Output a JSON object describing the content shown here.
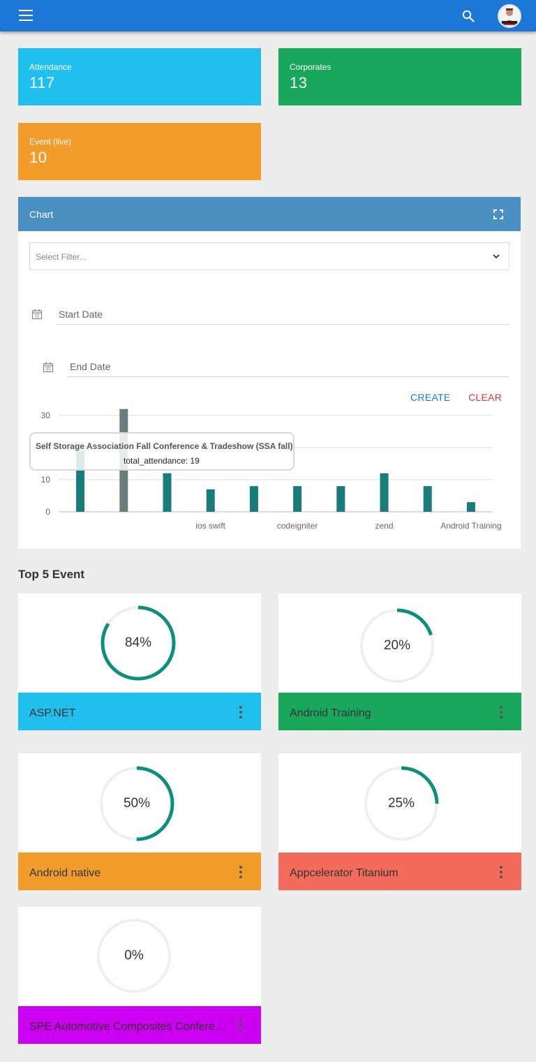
{
  "header": {
    "menu_icon": "menu-icon",
    "search_icon": "search-icon",
    "avatar_icon": "avatar"
  },
  "stats": [
    {
      "label": "Attendance",
      "value": "117",
      "color": "#20bfee"
    },
    {
      "label": "Corporates",
      "value": "13",
      "color": "#19a75b"
    },
    {
      "label": "Event (live)",
      "value": "10",
      "color": "#f29c2c"
    }
  ],
  "chart_card": {
    "title": "Chart",
    "fullscreen_icon": "fullscreen-icon",
    "filter_placeholder": "Select Filter...",
    "start_date_label": "Start Date",
    "end_date_label": "End Date",
    "create_label": "CREATE",
    "clear_label": "CLEAR",
    "colors": {
      "header": "#4a90c2",
      "create": "#1d77d6",
      "clear": "#e53935",
      "bar": "#1a7b7b"
    }
  },
  "chart_data": {
    "type": "bar",
    "y_ticks": [
      "0",
      "10",
      "20",
      "30"
    ],
    "ylim": [
      0,
      32
    ],
    "grid": true,
    "values": [
      19,
      32,
      12,
      7,
      8,
      8,
      8,
      12,
      8,
      3
    ],
    "x_tick_labels": [
      "",
      "",
      "",
      "ios swift",
      "",
      "codeigniter",
      "",
      "zend",
      "",
      "Android Training"
    ],
    "tooltip": {
      "title": "Self Storage Association Fall Conference & Tradeshow (SSA fall)",
      "text": "total_attendance: 19"
    }
  },
  "top_events": {
    "title": "Top 5 Event",
    "items": [
      {
        "name": "ASP.NET",
        "percent": 84,
        "label": "84%",
        "color": "#20bfee"
      },
      {
        "name": "Android Training",
        "percent": 20,
        "label": "20%",
        "color": "#19a75b"
      },
      {
        "name": "Android native",
        "percent": 50,
        "label": "50%",
        "color": "#f29c2c"
      },
      {
        "name": "Appcelerator Titanium",
        "percent": 25,
        "label": "25%",
        "color": "#f26b5b"
      },
      {
        "name": "SPE Automotive Composites Conference",
        "percent": 0,
        "label": "0%",
        "color": "#cc00f0"
      }
    ]
  }
}
